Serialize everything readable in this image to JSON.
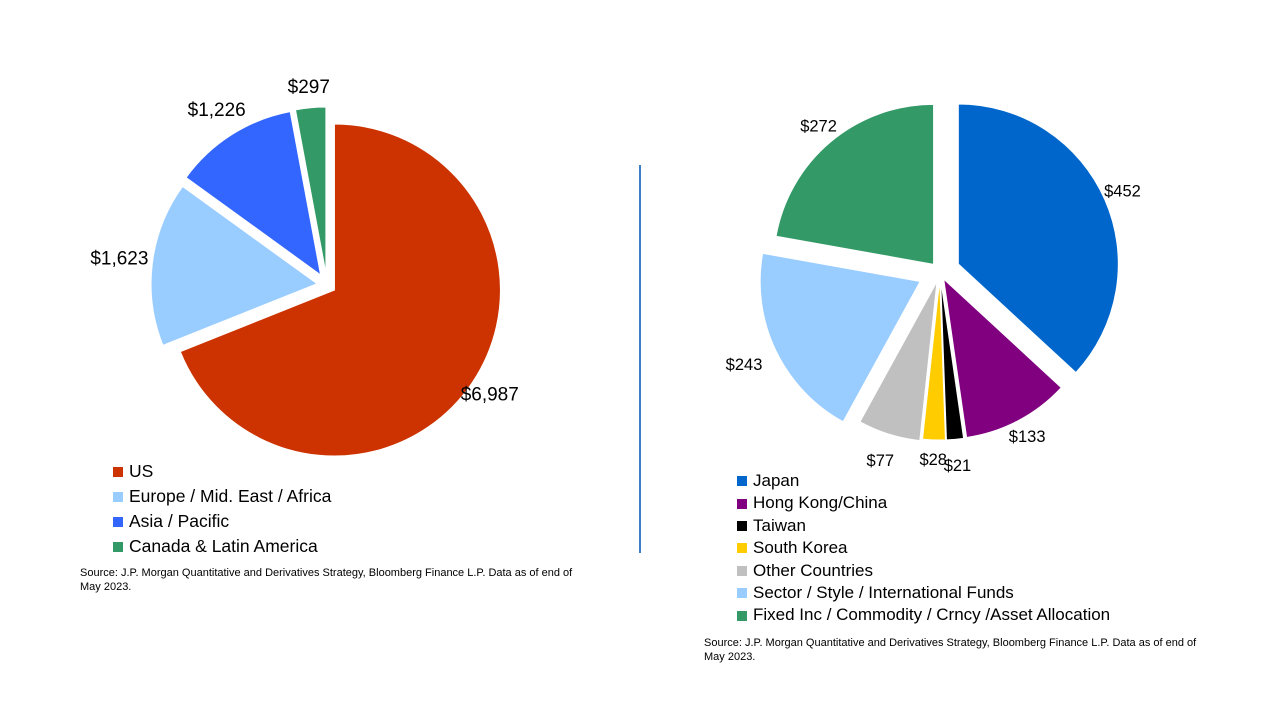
{
  "chart_data": [
    {
      "type": "pie",
      "title": "",
      "categories": [
        "US",
        "Europe / Mid. East / Africa",
        "Asia / Pacific",
        "Canada & Latin America"
      ],
      "values": [
        6987,
        1623,
        1226,
        297
      ],
      "labels": [
        "$6,987",
        "$1,623",
        "$1,226",
        "$297"
      ],
      "colors": [
        "#cc3300",
        "#99ccff",
        "#3366ff",
        "#339966"
      ],
      "legend": "bottom",
      "exploded": true
    },
    {
      "type": "pie",
      "title": "",
      "categories": [
        "Japan",
        "Hong Kong/China",
        "Taiwan",
        "South Korea",
        "Other Countries",
        "Sector / Style / International Funds",
        "Fixed Inc / Commodity / Crncy /Asset Allocation"
      ],
      "values": [
        452,
        133,
        21,
        28,
        77,
        243,
        272
      ],
      "labels": [
        "$452",
        "$133",
        "$21",
        "$28",
        "$77",
        "$243",
        "$272"
      ],
      "colors": [
        "#0066cc",
        "#800080",
        "#000000",
        "#ffcc00",
        "#c0c0c0",
        "#99ccff",
        "#339966"
      ],
      "legend": "bottom",
      "exploded": true
    }
  ],
  "sources": [
    "Source: J.P. Morgan Quantitative and Derivatives Strategy, Bloomberg Finance L.P. Data as of end of May 2023.",
    "Source: J.P. Morgan Quantitative and Derivatives Strategy, Bloomberg Finance L.P. Data as of end of May 2023."
  ]
}
